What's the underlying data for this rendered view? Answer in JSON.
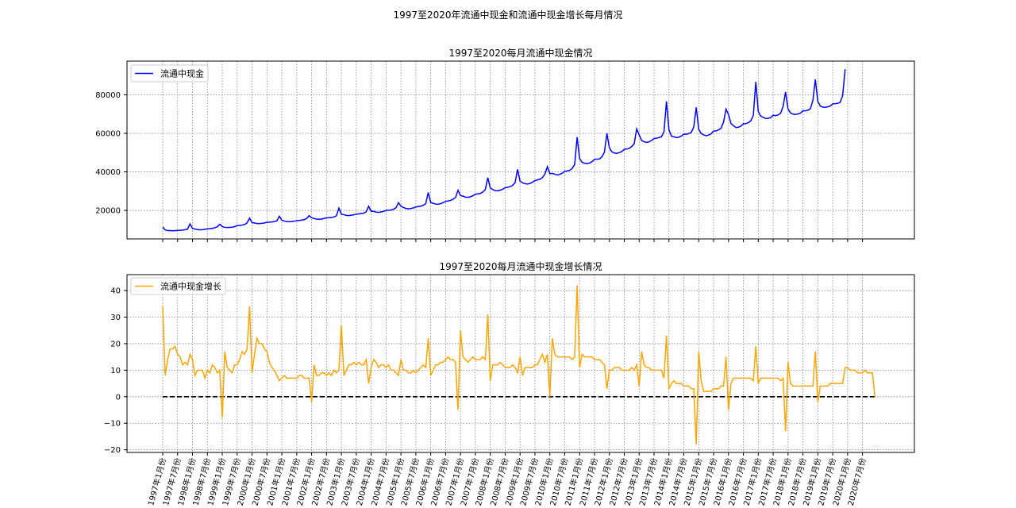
{
  "figure": {
    "suptitle": "1997至2020年流通中现金和流通中现金增长每月情况"
  },
  "chart_data": [
    {
      "type": "line",
      "title": "1997至2020每月流通中现金情况",
      "xlabel": "",
      "ylabel": "",
      "legend": "top-left",
      "grid": true,
      "color": "#0000ff",
      "x_start": "1997-01",
      "x_end": "2020-12",
      "ylim": [
        5200,
        97500
      ],
      "yticks": [
        20000,
        40000,
        60000,
        80000
      ],
      "xticks": [
        "1997年1月份",
        "1997年7月份",
        "1998年1月份",
        "1998年7月份",
        "1999年1月份",
        "1999年7月份",
        "2000年1月份",
        "2000年7月份",
        "2001年1月份",
        "2001年7月份",
        "2002年1月份",
        "2002年7月份",
        "2003年1月份",
        "2003年7月份",
        "2004年1月份",
        "2004年7月份",
        "2005年1月份",
        "2005年7月份",
        "2006年1月份",
        "2006年7月份",
        "2007年1月份",
        "2007年7月份",
        "2008年1月份",
        "2008年7月份",
        "2009年1月份",
        "2009年7月份",
        "2010年1月份",
        "2010年7月份",
        "2011年1月份",
        "2011年7月份",
        "2012年1月份",
        "2012年7月份",
        "2013年1月份",
        "2013年7月份",
        "2014年1月份",
        "2014年7月份",
        "2015年1月份",
        "2015年7月份",
        "2016年1月份",
        "2016年7月份",
        "2017年1月份",
        "2017年7月份",
        "2018年1月份",
        "2018年7月份",
        "2019年1月份",
        "2019年7月份",
        "2020年1月份",
        "2020年7月份"
      ],
      "series": [
        {
          "name": "流通中现金",
          "values": [
            11400,
            9900,
            9500,
            9500,
            9400,
            9500,
            9600,
            9700,
            9800,
            10000,
            10300,
            13000,
            10600,
            10300,
            10100,
            9900,
            10000,
            10200,
            10400,
            10500,
            10700,
            11000,
            11500,
            12800,
            11600,
            11200,
            11100,
            11200,
            11300,
            11600,
            12100,
            12200,
            12400,
            12700,
            13500,
            16000,
            13600,
            13500,
            13200,
            13200,
            13300,
            13500,
            13800,
            13900,
            14000,
            14200,
            14600,
            17000,
            14900,
            14500,
            14200,
            14100,
            14200,
            14400,
            14700,
            14800,
            15000,
            15200,
            15800,
            17300,
            16200,
            15800,
            15500,
            15400,
            15500,
            15800,
            16100,
            16200,
            16300,
            16600,
            17200,
            21200,
            18000,
            17800,
            17400,
            17300,
            17500,
            17700,
            18100,
            18200,
            18400,
            18600,
            19300,
            22200,
            19500,
            19500,
            19100,
            19000,
            19200,
            19500,
            20000,
            20100,
            20200,
            20600,
            21400,
            24000,
            22200,
            21500,
            21000,
            20800,
            21000,
            21300,
            21800,
            22000,
            22200,
            22700,
            23500,
            29300,
            24100,
            23700,
            23300,
            23200,
            23500,
            24000,
            24700,
            24900,
            25200,
            25800,
            26700,
            30500,
            27700,
            27400,
            26900,
            26800,
            27100,
            27600,
            28400,
            28600,
            28800,
            29600,
            30800,
            37000,
            31700,
            30800,
            30300,
            30200,
            30500,
            31000,
            31800,
            32000,
            32300,
            33000,
            34400,
            41300,
            35200,
            34300,
            33900,
            33700,
            34000,
            34600,
            35500,
            35800,
            36200,
            37000,
            38800,
            42700,
            39100,
            39200,
            38800,
            38400,
            38700,
            39300,
            40300,
            40500,
            40800,
            41800,
            43800,
            58000,
            46900,
            45000,
            44500,
            44300,
            44600,
            45300,
            46500,
            46600,
            46700,
            47800,
            50200,
            60000,
            52500,
            50400,
            49800,
            49600,
            50000,
            50600,
            51700,
            51900,
            52200,
            53200,
            54600,
            62300,
            59200,
            56300,
            55600,
            55300,
            55600,
            56300,
            57300,
            57500,
            57800,
            58300,
            60800,
            76600,
            61900,
            58600,
            58200,
            57800,
            58000,
            58600,
            59600,
            59500,
            59900,
            60500,
            63300,
            73500,
            62100,
            59900,
            59200,
            58800,
            59100,
            59800,
            61200,
            61300,
            61800,
            62700,
            65800,
            72600,
            69800,
            65100,
            64000,
            63000,
            63200,
            63700,
            65000,
            65000,
            65600,
            66500,
            69300,
            86700,
            71300,
            68900,
            68300,
            67700,
            67800,
            68200,
            69400,
            69200,
            69600,
            70400,
            74000,
            81500,
            72600,
            70600,
            70000,
            69800,
            70100,
            70500,
            71700,
            71700,
            72000,
            72800,
            77000,
            88000,
            76600,
            74200,
            73600,
            73500,
            73800,
            74200,
            75300,
            75400,
            75600,
            76100,
            79600,
            93300
          ]
        }
      ]
    },
    {
      "type": "line",
      "title": "1997至2020每月流通中现金增长情况",
      "xlabel": "",
      "ylabel": "",
      "legend": "top-left",
      "grid": true,
      "color": "#ffa500",
      "reference_line": 0,
      "ylim": [
        -21,
        46
      ],
      "yticks": [
        -20,
        -10,
        0,
        10,
        20,
        30,
        40
      ],
      "series": [
        {
          "name": "流通中现金增长",
          "values": [
            34,
            8,
            14,
            18,
            18,
            19,
            16,
            15,
            12,
            13,
            12,
            16,
            14,
            8,
            10,
            10,
            10,
            7,
            10,
            9,
            12,
            11,
            9,
            10,
            -8,
            17,
            11,
            10,
            9,
            12,
            12,
            14,
            17,
            16,
            18,
            34,
            9,
            16,
            22,
            20,
            20,
            18,
            17,
            13,
            11,
            10,
            8,
            6,
            7,
            8,
            7,
            7,
            7,
            7,
            7,
            8,
            8,
            7,
            7,
            7,
            -2,
            12,
            8,
            8,
            9,
            9,
            8,
            9,
            8,
            10,
            9,
            10,
            27,
            8,
            10,
            12,
            12,
            13,
            12,
            13,
            12,
            12,
            14,
            5,
            11,
            14,
            13,
            11,
            12,
            12,
            11,
            12,
            10,
            10,
            9,
            8,
            14,
            10,
            10,
            9,
            9,
            10,
            9,
            10,
            11,
            12,
            11,
            22,
            8,
            10,
            12,
            12,
            13,
            13,
            14,
            15,
            14,
            14,
            13,
            -5,
            25,
            15,
            14,
            13,
            14,
            15,
            14,
            14,
            14,
            15,
            14,
            31,
            6,
            12,
            12,
            12,
            13,
            12,
            11,
            11,
            11,
            12,
            11,
            9,
            15,
            8,
            11,
            11,
            11,
            11,
            12,
            12,
            14,
            16,
            13,
            16,
            0,
            22,
            16,
            15,
            15,
            15,
            15,
            15,
            15,
            14,
            15,
            42,
            11,
            16,
            15,
            15,
            15,
            15,
            14,
            14,
            14,
            13,
            12,
            3,
            10,
            10,
            11,
            11,
            11,
            10,
            10,
            10,
            10,
            11,
            10,
            12,
            4,
            17,
            12,
            11,
            11,
            10,
            10,
            10,
            10,
            10,
            7,
            23,
            3,
            5,
            6,
            5,
            5,
            5,
            4,
            4,
            4,
            3,
            3,
            -18,
            17,
            6,
            2,
            2,
            2,
            2,
            3,
            3,
            3,
            4,
            4,
            15,
            -5,
            5,
            7,
            7,
            7,
            7,
            7,
            7,
            7,
            7,
            6,
            19,
            5,
            7,
            7,
            7,
            7,
            7,
            7,
            7,
            7,
            6,
            7,
            -13,
            13,
            5,
            4,
            4,
            4,
            4,
            4,
            4,
            4,
            4,
            4,
            17,
            -2,
            4,
            4,
            4,
            4,
            5,
            5,
            5,
            5,
            5,
            5,
            11,
            11,
            10,
            10,
            10,
            9,
            9,
            9,
            10,
            9,
            9,
            9,
            0
          ]
        }
      ]
    }
  ]
}
